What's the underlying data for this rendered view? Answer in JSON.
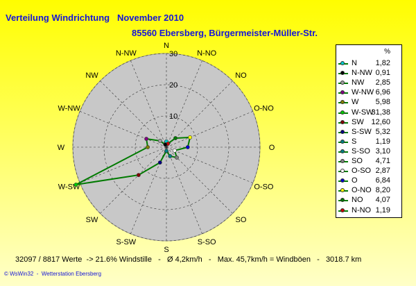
{
  "header": {
    "title": "Verteilung Windrichtung   November 2010",
    "subtitle": "85560 Ebersberg, Bürgermeister-Müller-Str."
  },
  "legend": {
    "unit_header": "%"
  },
  "footer": {
    "stats": "32097 / 8817 Werte  -> 21.6% Windstille   -   Ø 4,2km/h   -   Max. 45,7km/h = Windböen   -   3018.7 km",
    "credit": "© WsWin32  -  Wetterstation Ebersberg"
  },
  "colors": {
    "line": "#007a00",
    "disc": "#c8c8c8",
    "disc_border": "#9a9a9a"
  },
  "chart_data": {
    "type": "radar",
    "rmax": 30,
    "rings": [
      10,
      20,
      30
    ],
    "ring_labels": [
      "10",
      "20",
      "30"
    ],
    "directions": [
      "N",
      "N-NO",
      "NO",
      "O-NO",
      "O",
      "O-SO",
      "SO",
      "S-SO",
      "S",
      "S-SW",
      "SW",
      "W-SW",
      "W",
      "W-NW",
      "NW",
      "N-NW"
    ],
    "legend_order": [
      "N",
      "N-NW",
      "NW",
      "W-NW",
      "W",
      "W-SW",
      "SW",
      "S-SW",
      "S",
      "S-SO",
      "SO",
      "O-SO",
      "O",
      "O-NO",
      "NO",
      "N-NO"
    ],
    "legend_values": [
      "1,82",
      "0,91",
      "2,85",
      "6,96",
      "5,98",
      "31,38",
      "12,60",
      "5,32",
      "1,19",
      "3,10",
      "4,71",
      "2,87",
      "6,84",
      "8,20",
      "4,07",
      "1,19"
    ],
    "values": [
      1.82,
      1.19,
      4.07,
      8.2,
      6.84,
      2.87,
      4.71,
      3.1,
      1.19,
      5.32,
      12.6,
      31.38,
      5.98,
      6.96,
      2.85,
      0.91
    ],
    "marker_colors": [
      "#00cccc",
      "#cc0000",
      "#007a00",
      "#ffff00",
      "#0000cc",
      "#ffffff",
      "#808080",
      "#008080",
      "#008080",
      "#000080",
      "#800000",
      "#00cc00",
      "#808000",
      "#800080",
      "#a0a0a0",
      "#000000"
    ],
    "grid": true,
    "legend_position": "right"
  }
}
